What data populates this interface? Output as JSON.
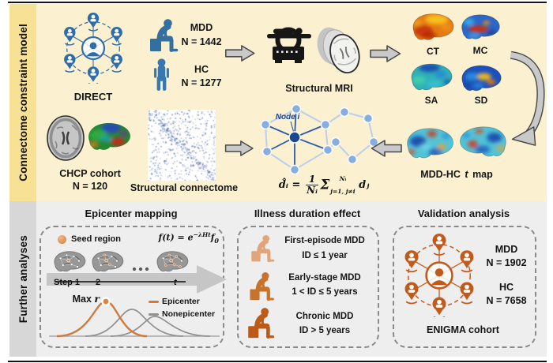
{
  "sections": {
    "top_label": "Connectome constraint model",
    "bottom_label": "Further analyses"
  },
  "colors": {
    "top_band": "#F7E195",
    "top_bg": "#FBF0D0",
    "bottom_band": "#D7D7D7",
    "bottom_bg": "#EEEEEE",
    "blue": "#2E6DA8",
    "orange": "#C25A1C",
    "orange_light": "#E2A478",
    "orange_mid": "#C9722C",
    "orange_dark": "#BC5A17",
    "arrow_gray": "#C9C9C9",
    "epicenter_line": "#CE7A3E",
    "nonepicenter_line": "#909090"
  },
  "flow": {
    "direct": {
      "label": "DIRECT"
    },
    "cohort": {
      "mdd": "MDD",
      "mdd_n": "N = 1442",
      "hc": "HC",
      "hc_n": "N = 1277"
    },
    "mri": {
      "label": "Structural MRI"
    },
    "maps": {
      "ct": "CT",
      "mc": "MC",
      "sa": "SA",
      "sd": "SD"
    },
    "chcp": {
      "label": "CHCP cohort",
      "n": "N = 120"
    },
    "connectome": {
      "label": "Structural connectome"
    },
    "node": {
      "label": "Node i",
      "formula": {
        "lhs": "d̂ᵢ",
        "eq": "=",
        "num": "1",
        "den": "Nᵢ",
        "sigma": "Σ",
        "sup": "Nᵢ",
        "sub": "j=1, j≠i",
        "rhs": "dⱼ"
      }
    },
    "tmap": {
      "pre": "MDD-HC",
      "italic": "t",
      "post": "map"
    }
  },
  "epicenter": {
    "title": "Epicenter mapping",
    "seed_label": "Seed region",
    "formula": {
      "lead": "f(t) = e",
      "exp": "−λHt",
      "base": "f",
      "sub": "0"
    },
    "step1": "Step 1",
    "step2": "2",
    "stept": "t",
    "max": "Max",
    "max_it": "r",
    "legend_epicenter": "Epicenter",
    "legend_nonepicenter": "Nonepicenter"
  },
  "illness": {
    "title": "Illness duration effect",
    "g1": {
      "name": "First-episode MDD",
      "range": "ID ≤ 1 year"
    },
    "g2": {
      "name": "Early-stage MDD",
      "range": "1 < ID ≤ 5 years"
    },
    "g3": {
      "name": "Chronic MDD",
      "range": "ID > 5 years"
    }
  },
  "validation": {
    "title": "Validation analysis",
    "mdd": "MDD",
    "mdd_n": "N = 1902",
    "hc": "HC",
    "hc_n": "N = 7658",
    "cohort": "ENIGMA cohort"
  }
}
